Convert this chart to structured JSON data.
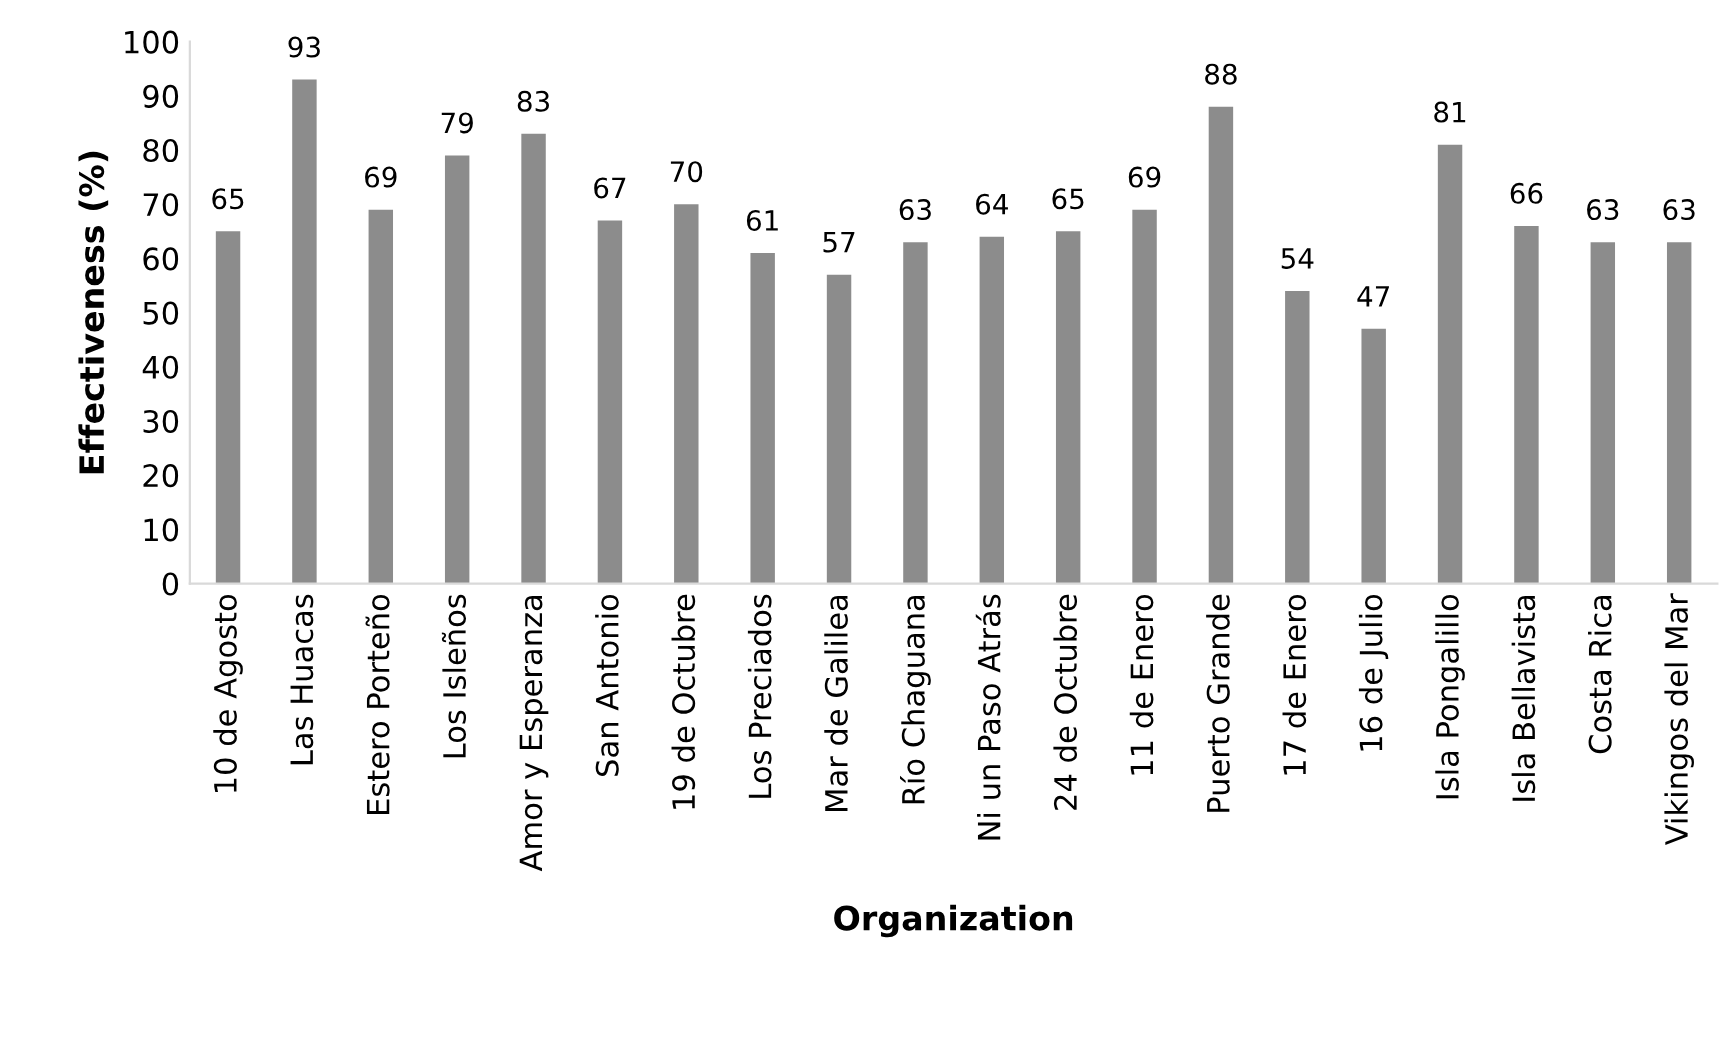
{
  "chart_data": {
    "type": "bar",
    "xlabel": "Organization",
    "ylabel": "Effectiveness (%)",
    "categories": [
      "10 de Agosto",
      "Las Huacas",
      "Estero Porteño",
      "Los Isleños",
      "Amor y Esperanza",
      "San Antonio",
      "19 de Octubre",
      "Los Preciados",
      "Mar de Galilea",
      "Río Chaguana",
      "Ni un Paso Atrás",
      "24 de Octubre",
      "11 de Enero",
      "Puerto Grande",
      "17 de Enero",
      "16 de Julio",
      "Isla Pongalillo",
      "Isla Bellavista",
      "Costa Rica",
      "Vikingos del Mar"
    ],
    "values": [
      65,
      93,
      69,
      79,
      83,
      67,
      70,
      61,
      57,
      63,
      64,
      65,
      69,
      88,
      54,
      47,
      81,
      66,
      63,
      63
    ],
    "color": "#8c8c8c",
    "ylim": [
      0,
      100
    ],
    "yticks": [
      0,
      10,
      20,
      30,
      40,
      50,
      60,
      70,
      80,
      90,
      100
    ],
    "grid": false,
    "data_labels": true
  }
}
